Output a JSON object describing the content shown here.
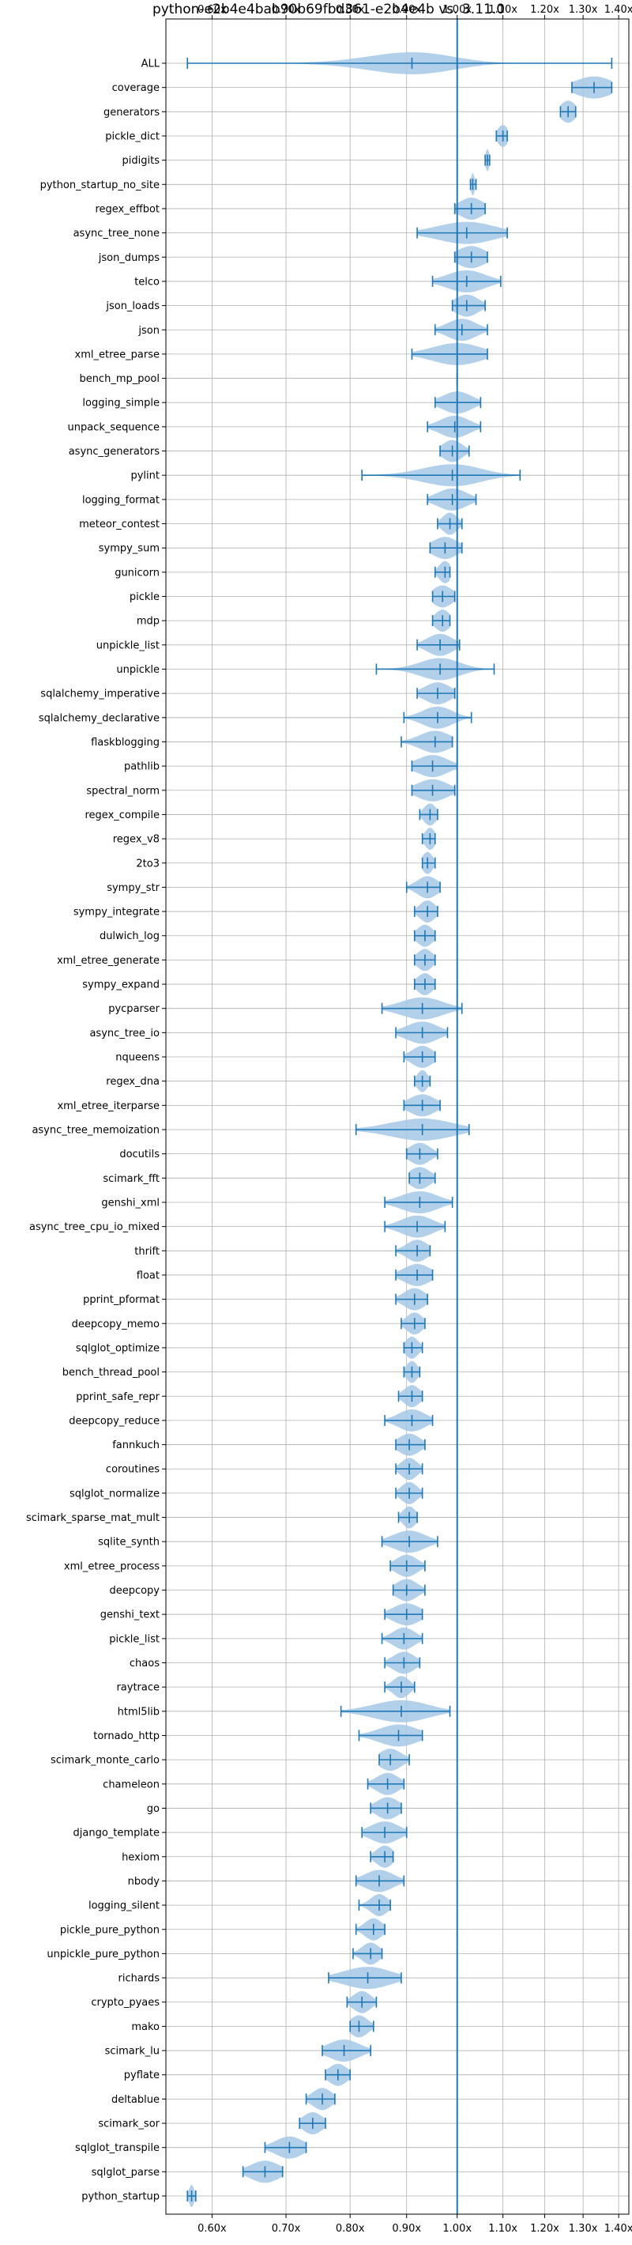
{
  "chart_data": {
    "type": "violin",
    "title": "python-e2b4e4bab90b69fbd361-e2b4e4b vs. 3.11.0",
    "xlabel": "",
    "ylabel": "",
    "x_scale": "log",
    "xlim": [
      0.545,
      1.43
    ],
    "x_ticks": [
      0.6,
      0.7,
      0.8,
      0.9,
      1.0,
      1.1,
      1.2,
      1.3,
      1.4
    ],
    "x_tick_labels": [
      "0.60x",
      "0.70x",
      "0.80x",
      "0.90x",
      "1.00x",
      "1.10x",
      "1.20x",
      "1.30x",
      "1.40x"
    ],
    "x_ticks_position": "top and bottom",
    "reference_line": 1.0,
    "grid": true,
    "colors": {
      "body": "#1f77b4",
      "fill": "#a6c8e6",
      "grid": "#b0b0b0"
    },
    "categories": [
      "ALL",
      "coverage",
      "generators",
      "pickle_dict",
      "pidigits",
      "python_startup_no_site",
      "regex_effbot",
      "async_tree_none",
      "json_dumps",
      "telco",
      "json_loads",
      "json",
      "xml_etree_parse",
      "bench_mp_pool",
      "logging_simple",
      "unpack_sequence",
      "async_generators",
      "pylint",
      "logging_format",
      "meteor_contest",
      "sympy_sum",
      "gunicorn",
      "pickle",
      "mdp",
      "unpickle_list",
      "unpickle",
      "sqlalchemy_imperative",
      "sqlalchemy_declarative",
      "flaskblogging",
      "pathlib",
      "spectral_norm",
      "regex_compile",
      "regex_v8",
      "2to3",
      "sympy_str",
      "sympy_integrate",
      "dulwich_log",
      "xml_etree_generate",
      "sympy_expand",
      "pycparser",
      "async_tree_io",
      "nqueens",
      "regex_dna",
      "xml_etree_iterparse",
      "async_tree_memoization",
      "docutils",
      "scimark_fft",
      "genshi_xml",
      "async_tree_cpu_io_mixed",
      "thrift",
      "float",
      "pprint_pformat",
      "deepcopy_memo",
      "sqlglot_optimize",
      "bench_thread_pool",
      "pprint_safe_repr",
      "deepcopy_reduce",
      "fannkuch",
      "coroutines",
      "sqlglot_normalize",
      "scimark_sparse_mat_mult",
      "sqlite_synth",
      "xml_etree_process",
      "deepcopy",
      "genshi_text",
      "pickle_list",
      "chaos",
      "raytrace",
      "html5lib",
      "tornado_http",
      "scimark_monte_carlo",
      "chameleon",
      "go",
      "django_template",
      "hexiom",
      "nbody",
      "logging_silent",
      "pickle_pure_python",
      "unpickle_pure_python",
      "richards",
      "crypto_pyaes",
      "mako",
      "scimark_lu",
      "pyflate",
      "deltablue",
      "scimark_sor",
      "sqlglot_transpile",
      "sqlglot_parse",
      "python_startup"
    ],
    "min": [
      0.57,
      1.27,
      1.24,
      1.085,
      1.06,
      1.028,
      0.995,
      0.92,
      0.995,
      0.95,
      0.99,
      0.955,
      0.91,
      1.0,
      0.955,
      0.94,
      0.965,
      0.82,
      0.94,
      0.96,
      0.945,
      0.955,
      0.95,
      0.95,
      0.92,
      0.845,
      0.92,
      0.895,
      0.89,
      0.91,
      0.91,
      0.925,
      0.93,
      0.93,
      0.9,
      0.915,
      0.915,
      0.915,
      0.915,
      0.855,
      0.88,
      0.895,
      0.915,
      0.895,
      0.81,
      0.9,
      0.905,
      0.86,
      0.86,
      0.88,
      0.88,
      0.88,
      0.89,
      0.895,
      0.895,
      0.885,
      0.86,
      0.88,
      0.88,
      0.88,
      0.885,
      0.855,
      0.87,
      0.875,
      0.86,
      0.855,
      0.86,
      0.86,
      0.785,
      0.815,
      0.85,
      0.83,
      0.835,
      0.82,
      0.835,
      0.81,
      0.815,
      0.81,
      0.805,
      0.765,
      0.795,
      0.8,
      0.755,
      0.76,
      0.73,
      0.72,
      0.67,
      0.64,
      0.57
    ],
    "max": [
      1.38,
      1.38,
      1.28,
      1.11,
      1.07,
      1.04,
      1.06,
      1.11,
      1.065,
      1.095,
      1.06,
      1.065,
      1.065,
      1.0,
      1.05,
      1.05,
      1.025,
      1.14,
      1.04,
      1.01,
      1.01,
      0.985,
      0.995,
      0.985,
      1.005,
      1.08,
      0.995,
      1.03,
      0.99,
      1.0,
      0.995,
      0.96,
      0.955,
      0.955,
      0.965,
      0.96,
      0.955,
      0.955,
      0.955,
      1.01,
      0.98,
      0.955,
      0.945,
      0.965,
      1.025,
      0.96,
      0.955,
      0.99,
      0.975,
      0.945,
      0.95,
      0.94,
      0.935,
      0.93,
      0.925,
      0.93,
      0.95,
      0.935,
      0.93,
      0.93,
      0.92,
      0.96,
      0.935,
      0.935,
      0.93,
      0.93,
      0.925,
      0.915,
      0.985,
      0.93,
      0.905,
      0.895,
      0.89,
      0.9,
      0.875,
      0.895,
      0.87,
      0.86,
      0.855,
      0.89,
      0.845,
      0.84,
      0.835,
      0.8,
      0.775,
      0.76,
      0.73,
      0.695,
      0.58
    ],
    "median": [
      0.91,
      1.33,
      1.26,
      1.1,
      1.065,
      1.033,
      1.03,
      1.02,
      1.03,
      1.02,
      1.02,
      1.01,
      1.0,
      1.0,
      1.0,
      0.995,
      0.99,
      0.99,
      0.99,
      0.985,
      0.975,
      0.975,
      0.97,
      0.97,
      0.965,
      0.965,
      0.96,
      0.96,
      0.955,
      0.95,
      0.95,
      0.945,
      0.945,
      0.94,
      0.94,
      0.94,
      0.935,
      0.935,
      0.935,
      0.93,
      0.93,
      0.93,
      0.93,
      0.93,
      0.93,
      0.925,
      0.925,
      0.925,
      0.92,
      0.92,
      0.92,
      0.915,
      0.915,
      0.91,
      0.91,
      0.91,
      0.91,
      0.905,
      0.905,
      0.905,
      0.905,
      0.905,
      0.9,
      0.9,
      0.9,
      0.895,
      0.895,
      0.89,
      0.89,
      0.885,
      0.87,
      0.865,
      0.865,
      0.86,
      0.86,
      0.85,
      0.85,
      0.84,
      0.835,
      0.83,
      0.82,
      0.815,
      0.79,
      0.78,
      0.755,
      0.74,
      0.705,
      0.67,
      0.575
    ],
    "spread": [
      0.08,
      0.05,
      0.02,
      0.012,
      0.004,
      0.004,
      0.025,
      0.06,
      0.03,
      0.04,
      0.025,
      0.03,
      0.05,
      0.003,
      0.03,
      0.03,
      0.02,
      0.06,
      0.03,
      0.015,
      0.025,
      0.012,
      0.02,
      0.015,
      0.025,
      0.04,
      0.025,
      0.03,
      0.03,
      0.03,
      0.03,
      0.012,
      0.01,
      0.01,
      0.02,
      0.015,
      0.015,
      0.015,
      0.015,
      0.04,
      0.03,
      0.02,
      0.01,
      0.025,
      0.06,
      0.02,
      0.02,
      0.035,
      0.03,
      0.02,
      0.025,
      0.02,
      0.015,
      0.012,
      0.01,
      0.015,
      0.025,
      0.02,
      0.015,
      0.015,
      0.012,
      0.03,
      0.02,
      0.02,
      0.025,
      0.02,
      0.02,
      0.015,
      0.05,
      0.035,
      0.02,
      0.02,
      0.02,
      0.025,
      0.015,
      0.025,
      0.015,
      0.015,
      0.015,
      0.04,
      0.015,
      0.015,
      0.025,
      0.015,
      0.015,
      0.015,
      0.02,
      0.02,
      0.003
    ]
  }
}
